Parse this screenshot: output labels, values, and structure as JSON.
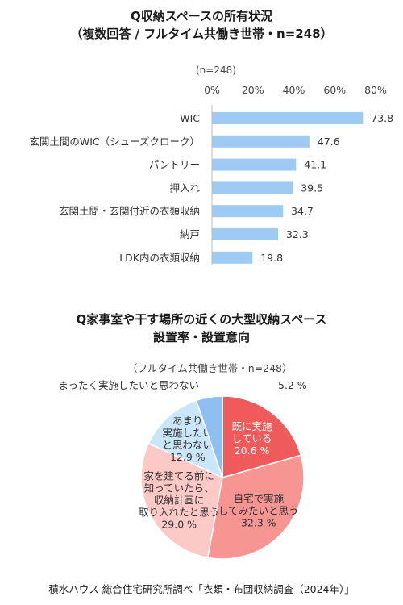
{
  "chart_data": [
    {
      "type": "bar",
      "orientation": "horizontal",
      "title": "Q収納スペースの所有状況",
      "subtitle": "（複数回答 / フルタイム共働き世帯・n=248）",
      "note": "(n=248)",
      "categories": [
        "WIC",
        "玄関土間のWIC（シューズクローク）",
        "パントリー",
        "押入れ",
        "玄関土間・玄関付近の衣類収納",
        "納戸",
        "LDK内の衣類収納"
      ],
      "values": [
        73.8,
        47.6,
        41.1,
        39.5,
        34.7,
        32.3,
        19.8
      ],
      "value_labels": [
        "73.8",
        "47.6",
        "41.1",
        "39.5",
        "34.7",
        "32.3",
        "19.8"
      ],
      "ticks": [
        0,
        20,
        40,
        60,
        80
      ],
      "tick_labels": [
        "0%",
        "20%",
        "40%",
        "60%",
        "80%"
      ],
      "xlim": [
        0,
        80
      ],
      "grid": false,
      "bar_color": "#9ecaf4"
    },
    {
      "type": "pie",
      "title_line1": "Q家事室や干す場所の近くの大型収納スペース",
      "title_line2": "設置率・設置意向",
      "note": "（フルタイム共働き世帯・n=248）",
      "start_angle_deg": 0,
      "direction": "clockwise",
      "slices": [
        {
          "label_lines": [
            "既に実施",
            "している"
          ],
          "value_text": "20.6 %",
          "value": 20.6,
          "color": "#f05a5a",
          "text_color": "#ffffff"
        },
        {
          "label_lines": [
            "自宅で実施",
            "してみたいと思う"
          ],
          "value_text": "32.3 %",
          "value": 32.3,
          "color": "#f79593",
          "text_color": "#333333"
        },
        {
          "label_lines": [
            "家を建てる前に",
            "知っていたら、",
            "収納計画に",
            "取り入れたと思う"
          ],
          "value_text": "29.0 %",
          "value": 29.0,
          "color": "#fcc9c6",
          "text_color": "#333333"
        },
        {
          "label_lines": [
            "あまり",
            "実施したい",
            "と思わない"
          ],
          "value_text": "12.9 %",
          "value": 12.9,
          "color": "#c9e6fb",
          "text_color": "#333333"
        },
        {
          "label_lines": [
            "まったく実施したいと思わない"
          ],
          "value_text": "5.2 %",
          "value": 5.2,
          "color": "#8fbff0",
          "text_color": "#333333",
          "outside": true
        }
      ]
    }
  ],
  "footer": "積水ハウス 総合住宅研究所調べ「衣類・布団収納調査（2024年）」"
}
